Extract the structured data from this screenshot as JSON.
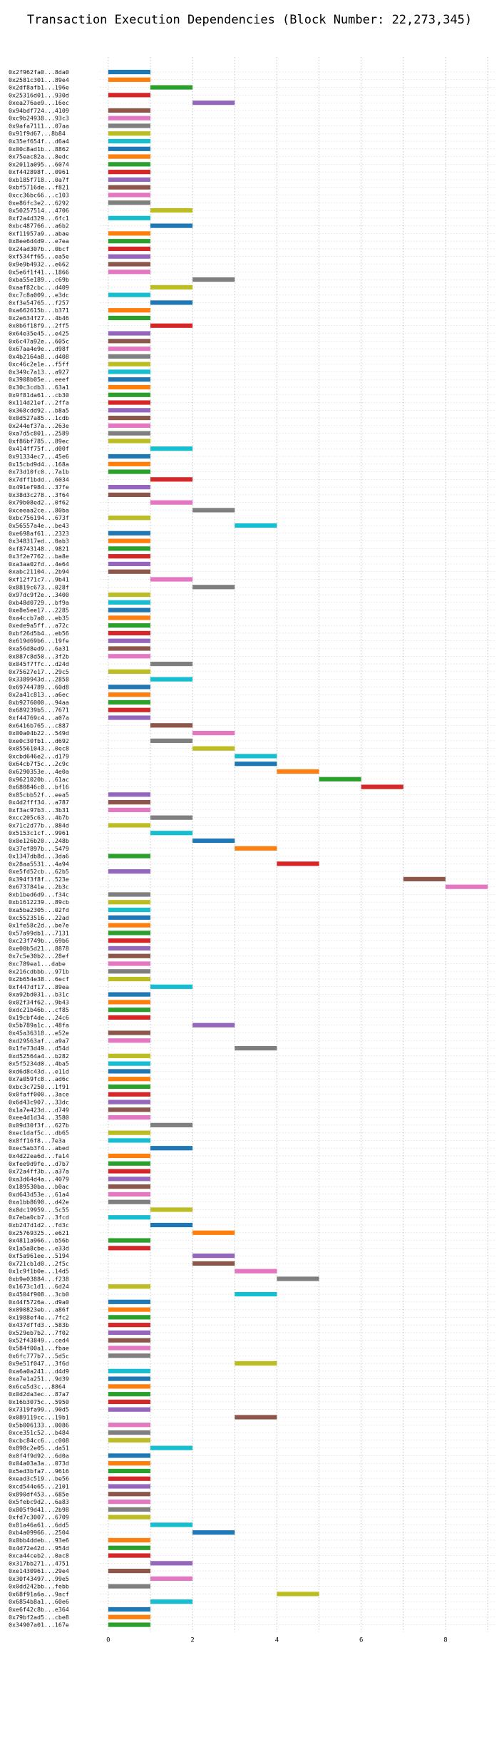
{
  "chart_data": {
    "type": "bar",
    "orientation": "horizontal",
    "title": "Transaction Execution Dependencies (Block Number: 22,273,345)",
    "xlabel": "",
    "ylabel": "",
    "xlim": [
      -0.2,
      9.2
    ],
    "xticks": [
      0,
      2,
      4,
      6,
      8
    ],
    "grid": true,
    "colors": [
      "#1f77b4",
      "#ff7f0e",
      "#2ca02c",
      "#d62728",
      "#9467bd",
      "#8c564b",
      "#e377c2",
      "#7f7f7f",
      "#bcbd22",
      "#17becf"
    ],
    "transactions": [
      {
        "label": "0x2f962fa0...8da0",
        "start": 0,
        "end": 1
      },
      {
        "label": "0x2581c301...89e4",
        "start": 0,
        "end": 1
      },
      {
        "label": "0x2df8afb1...196e",
        "start": 1,
        "end": 2
      },
      {
        "label": "0x25316d01...930d",
        "start": 0,
        "end": 1
      },
      {
        "label": "0xea276ae9...16ec",
        "start": 2,
        "end": 3
      },
      {
        "label": "0x94bdf724...4109",
        "start": 0,
        "end": 1
      },
      {
        "label": "0xc9b24938...93c3",
        "start": 0,
        "end": 1
      },
      {
        "label": "0x9afa7111...07aa",
        "start": 0,
        "end": 1
      },
      {
        "label": "0x91f9d67...8b84",
        "start": 0,
        "end": 1
      },
      {
        "label": "0x35ef654f...d6a4",
        "start": 0,
        "end": 1
      },
      {
        "label": "0x00c8ad1b...8862",
        "start": 0,
        "end": 1
      },
      {
        "label": "0x75eac82a...8edc",
        "start": 0,
        "end": 1
      },
      {
        "label": "0x2011a095...6074",
        "start": 0,
        "end": 1
      },
      {
        "label": "0xf442898f...0961",
        "start": 0,
        "end": 1
      },
      {
        "label": "0xb185f718...0a7f",
        "start": 0,
        "end": 1
      },
      {
        "label": "0xbf5716de...f821",
        "start": 0,
        "end": 1
      },
      {
        "label": "0xcc36bc66...c103",
        "start": 0,
        "end": 1
      },
      {
        "label": "0xe86fc3e2...6292",
        "start": 0,
        "end": 1
      },
      {
        "label": "0x50257514...4706",
        "start": 1,
        "end": 2
      },
      {
        "label": "0xf2a4d329...6fc1",
        "start": 0,
        "end": 1
      },
      {
        "label": "0xbc487766...a6b2",
        "start": 1,
        "end": 2
      },
      {
        "label": "0xf11957a9...abae",
        "start": 0,
        "end": 1
      },
      {
        "label": "0x8ee6d4d9...e7ea",
        "start": 0,
        "end": 1
      },
      {
        "label": "0x24ad307b...0bcf",
        "start": 0,
        "end": 1
      },
      {
        "label": "0xf534ff65...ea5e",
        "start": 0,
        "end": 1
      },
      {
        "label": "0x9e9b4932...e662",
        "start": 0,
        "end": 1
      },
      {
        "label": "0x5e6f1f41...1866",
        "start": 0,
        "end": 1
      },
      {
        "label": "0xba55e189...c69b",
        "start": 2,
        "end": 3
      },
      {
        "label": "0xaaf82cbc...d409",
        "start": 1,
        "end": 2
      },
      {
        "label": "0xc7c8a009...e3dc",
        "start": 0,
        "end": 1
      },
      {
        "label": "0xf3e54765...f257",
        "start": 1,
        "end": 2
      },
      {
        "label": "0xa662615b...b371",
        "start": 0,
        "end": 1
      },
      {
        "label": "0x2e634f27...4b46",
        "start": 0,
        "end": 1
      },
      {
        "label": "0x0b6f18f9...2ff5",
        "start": 1,
        "end": 2
      },
      {
        "label": "0x64e35e45...e425",
        "start": 0,
        "end": 1
      },
      {
        "label": "0x6c47a92e...605c",
        "start": 0,
        "end": 1
      },
      {
        "label": "0x67aa4e9e...d98f",
        "start": 0,
        "end": 1
      },
      {
        "label": "0x4b2164a8...d408",
        "start": 0,
        "end": 1
      },
      {
        "label": "0xc46c2e1e...f5ff",
        "start": 0,
        "end": 1
      },
      {
        "label": "0x349c7a13...a927",
        "start": 0,
        "end": 1
      },
      {
        "label": "0x3908b05e...eeef",
        "start": 0,
        "end": 1
      },
      {
        "label": "0x30c3cdb3...63a1",
        "start": 0,
        "end": 1
      },
      {
        "label": "0x9f81da61...cb30",
        "start": 0,
        "end": 1
      },
      {
        "label": "0x114d21ef...2ffa",
        "start": 0,
        "end": 1
      },
      {
        "label": "0x368cdd92...b8a5",
        "start": 0,
        "end": 1
      },
      {
        "label": "0x0d527a85...1cdb",
        "start": 0,
        "end": 1
      },
      {
        "label": "0x244ef37a...263e",
        "start": 0,
        "end": 1
      },
      {
        "label": "0xa7d5c801...2589",
        "start": 0,
        "end": 1
      },
      {
        "label": "0xf86bf785...89ec",
        "start": 0,
        "end": 1
      },
      {
        "label": "0x414ff75f...d00f",
        "start": 1,
        "end": 2
      },
      {
        "label": "0x91334ec7...45e6",
        "start": 0,
        "end": 1
      },
      {
        "label": "0x15cbd9d4...168a",
        "start": 0,
        "end": 1
      },
      {
        "label": "0x73d10fc0...7a1b",
        "start": 0,
        "end": 1
      },
      {
        "label": "0x7dff1bdd...6034",
        "start": 1,
        "end": 2
      },
      {
        "label": "0x491ef984...37fe",
        "start": 0,
        "end": 1
      },
      {
        "label": "0x38d3c278...3f64",
        "start": 0,
        "end": 1
      },
      {
        "label": "0x79b08ed2...0f62",
        "start": 1,
        "end": 2
      },
      {
        "label": "0xceeaa2ce...80ba",
        "start": 2,
        "end": 3
      },
      {
        "label": "0xbc756194...673f",
        "start": 0,
        "end": 1
      },
      {
        "label": "0x56557a4e...be43",
        "start": 3,
        "end": 4
      },
      {
        "label": "0xe698af61...2323",
        "start": 0,
        "end": 1
      },
      {
        "label": "0x348317ed...0ab3",
        "start": 0,
        "end": 1
      },
      {
        "label": "0xf8743148...9821",
        "start": 0,
        "end": 1
      },
      {
        "label": "0x3f2e7762...ba8e",
        "start": 0,
        "end": 1
      },
      {
        "label": "0xa3aa02fd...4e64",
        "start": 0,
        "end": 1
      },
      {
        "label": "0xabc21104...2b94",
        "start": 0,
        "end": 1
      },
      {
        "label": "0xf12f71c7...9b41",
        "start": 1,
        "end": 2
      },
      {
        "label": "0x8819c673...028f",
        "start": 2,
        "end": 3
      },
      {
        "label": "0x97dc9f2e...3400",
        "start": 0,
        "end": 1
      },
      {
        "label": "0xb48d0729...bf9a",
        "start": 0,
        "end": 1
      },
      {
        "label": "0xe8e5ee17...2285",
        "start": 0,
        "end": 1
      },
      {
        "label": "0xa4ccb7a0...eb35",
        "start": 0,
        "end": 1
      },
      {
        "label": "0xede9a5ff...a72c",
        "start": 0,
        "end": 1
      },
      {
        "label": "0xbf26d5b4...eb56",
        "start": 0,
        "end": 1
      },
      {
        "label": "0x619d69b6...19fe",
        "start": 0,
        "end": 1
      },
      {
        "label": "0xa56d8ed9...6a31",
        "start": 0,
        "end": 1
      },
      {
        "label": "0x887c8d50...3f2b",
        "start": 0,
        "end": 1
      },
      {
        "label": "0x045f7ffc...d24d",
        "start": 1,
        "end": 2
      },
      {
        "label": "0x75627e17...29c5",
        "start": 0,
        "end": 1
      },
      {
        "label": "0x3389943d...2858",
        "start": 1,
        "end": 2
      },
      {
        "label": "0x69744789...60d8",
        "start": 0,
        "end": 1
      },
      {
        "label": "0x2a41c813...a6ec",
        "start": 0,
        "end": 1
      },
      {
        "label": "0xb9276000...94aa",
        "start": 0,
        "end": 1
      },
      {
        "label": "0x689239b5...7671",
        "start": 0,
        "end": 1
      },
      {
        "label": "0xf44769c4...a07a",
        "start": 0,
        "end": 1
      },
      {
        "label": "0x6416b765...c887",
        "start": 1,
        "end": 2
      },
      {
        "label": "0x00a04b22...549d",
        "start": 2,
        "end": 3
      },
      {
        "label": "0xe0c30fb1...d692",
        "start": 1,
        "end": 2
      },
      {
        "label": "0x05561043...0ec8",
        "start": 2,
        "end": 3
      },
      {
        "label": "0xcbd646e2...d179",
        "start": 3,
        "end": 4
      },
      {
        "label": "0x64cb7f5c...2c9c",
        "start": 3,
        "end": 4
      },
      {
        "label": "0x6290353e...4e0a",
        "start": 4,
        "end": 5
      },
      {
        "label": "0x9621020b...61ac",
        "start": 5,
        "end": 6
      },
      {
        "label": "0x680846c0...bf16",
        "start": 6,
        "end": 7
      },
      {
        "label": "0x85cbb52f...eea5",
        "start": 0,
        "end": 1
      },
      {
        "label": "0x4d2fff34...a787",
        "start": 0,
        "end": 1
      },
      {
        "label": "0xf3ac97b3...3b31",
        "start": 0,
        "end": 1
      },
      {
        "label": "0xcc205c63...4b7b",
        "start": 1,
        "end": 2
      },
      {
        "label": "0x71c2d77b...884d",
        "start": 0,
        "end": 1
      },
      {
        "label": "0x5153c1cf...9961",
        "start": 1,
        "end": 2
      },
      {
        "label": "0x0e126b20...248b",
        "start": 2,
        "end": 3
      },
      {
        "label": "0x37ef897b...5479",
        "start": 3,
        "end": 4
      },
      {
        "label": "0x1347db8d...3da6",
        "start": 0,
        "end": 1
      },
      {
        "label": "0x28aa5531...4a94",
        "start": 4,
        "end": 5
      },
      {
        "label": "0xe5fd52cb...62b5",
        "start": 0,
        "end": 1
      },
      {
        "label": "0x394f3f8f...523e",
        "start": 7,
        "end": 8
      },
      {
        "label": "0x6737841e...2b3c",
        "start": 8,
        "end": 9
      },
      {
        "label": "0xb1bed6d9...f34c",
        "start": 0,
        "end": 1
      },
      {
        "label": "0xb1612239...89cb",
        "start": 0,
        "end": 1
      },
      {
        "label": "0xa5ba2305...02fd",
        "start": 0,
        "end": 1
      },
      {
        "label": "0xc5523516...22ad",
        "start": 0,
        "end": 1
      },
      {
        "label": "0x1fe58c2d...be7e",
        "start": 0,
        "end": 1
      },
      {
        "label": "0x57a99db1...7131",
        "start": 0,
        "end": 1
      },
      {
        "label": "0xc23f749b...69b6",
        "start": 0,
        "end": 1
      },
      {
        "label": "0xe00b5d21...8878",
        "start": 0,
        "end": 1
      },
      {
        "label": "0x7c5e30b2...28ef",
        "start": 0,
        "end": 1
      },
      {
        "label": "0xc789ea1...dabe",
        "start": 0,
        "end": 1
      },
      {
        "label": "0x216cdbbb...971b",
        "start": 0,
        "end": 1
      },
      {
        "label": "0x2b654e38...6ecf",
        "start": 0,
        "end": 1
      },
      {
        "label": "0xf447df17...89ea",
        "start": 1,
        "end": 2
      },
      {
        "label": "0xa92bd031...b31c",
        "start": 0,
        "end": 1
      },
      {
        "label": "0x02f34f62...9b43",
        "start": 0,
        "end": 1
      },
      {
        "label": "0xdc21b46b...cf85",
        "start": 0,
        "end": 1
      },
      {
        "label": "0x19cbf4de...24c6",
        "start": 0,
        "end": 1
      },
      {
        "label": "0x5b789a1c...48fa",
        "start": 2,
        "end": 3
      },
      {
        "label": "0x45a36318...e52e",
        "start": 0,
        "end": 1
      },
      {
        "label": "0xd29563af...a9a7",
        "start": 0,
        "end": 1
      },
      {
        "label": "0x1fe73d49...d54d",
        "start": 3,
        "end": 4
      },
      {
        "label": "0xd52564a4...b282",
        "start": 0,
        "end": 1
      },
      {
        "label": "0x5f5234d0...4ba5",
        "start": 0,
        "end": 1
      },
      {
        "label": "0xd6d8c43d...e11d",
        "start": 0,
        "end": 1
      },
      {
        "label": "0x7a059fc8...ad6c",
        "start": 0,
        "end": 1
      },
      {
        "label": "0xbc3c7250...1f91",
        "start": 0,
        "end": 1
      },
      {
        "label": "0x0faff000...3ace",
        "start": 0,
        "end": 1
      },
      {
        "label": "0x6d43c907...33dc",
        "start": 0,
        "end": 1
      },
      {
        "label": "0x1a7e423d...d749",
        "start": 0,
        "end": 1
      },
      {
        "label": "0xee4d1d34...3580",
        "start": 0,
        "end": 1
      },
      {
        "label": "0x09d30f3f...627b",
        "start": 1,
        "end": 2
      },
      {
        "label": "0xec1daf5c...db65",
        "start": 0,
        "end": 1
      },
      {
        "label": "0x8ff16f8...7e3a",
        "start": 0,
        "end": 1
      },
      {
        "label": "0xec5ab3f4...abed",
        "start": 1,
        "end": 2
      },
      {
        "label": "0x4d22ea6d...fa14",
        "start": 0,
        "end": 1
      },
      {
        "label": "0xfee9d9fe...d7b7",
        "start": 0,
        "end": 1
      },
      {
        "label": "0x72a4ff3b...a37a",
        "start": 0,
        "end": 1
      },
      {
        "label": "0xa3d64d4a...4079",
        "start": 0,
        "end": 1
      },
      {
        "label": "0x189530ba...b0ac",
        "start": 0,
        "end": 1
      },
      {
        "label": "0xd643d53e...61a4",
        "start": 0,
        "end": 1
      },
      {
        "label": "0xa1bb8690...d42e",
        "start": 0,
        "end": 1
      },
      {
        "label": "0x8dc19959...5c55",
        "start": 1,
        "end": 2
      },
      {
        "label": "0x7eba0cb7...3fcd",
        "start": 0,
        "end": 1
      },
      {
        "label": "0xb247d1d2...fd3c",
        "start": 1,
        "end": 2
      },
      {
        "label": "0x25769325...e621",
        "start": 2,
        "end": 3
      },
      {
        "label": "0x4811a966...b56b",
        "start": 0,
        "end": 1
      },
      {
        "label": "0x1a5a8cbe...e33d",
        "start": 0,
        "end": 1
      },
      {
        "label": "0xf5a961ee...5194",
        "start": 2,
        "end": 3
      },
      {
        "label": "0x721cb1d0...2f5c",
        "start": 2,
        "end": 3
      },
      {
        "label": "0x1c9f1b0e...14d5",
        "start": 3,
        "end": 4
      },
      {
        "label": "0xb9e03884...f238",
        "start": 4,
        "end": 5
      },
      {
        "label": "0x1673c1d1...6d24",
        "start": 0,
        "end": 1
      },
      {
        "label": "0x4504f908...3cb0",
        "start": 3,
        "end": 4
      },
      {
        "label": "0x44f5726a...d9a0",
        "start": 0,
        "end": 1
      },
      {
        "label": "0x090823eb...a86f",
        "start": 0,
        "end": 1
      },
      {
        "label": "0x1988ef4e...7fc2",
        "start": 0,
        "end": 1
      },
      {
        "label": "0x437dffd3...583b",
        "start": 0,
        "end": 1
      },
      {
        "label": "0x529eb7b2...7f02",
        "start": 0,
        "end": 1
      },
      {
        "label": "0x52f43849...ced4",
        "start": 0,
        "end": 1
      },
      {
        "label": "0x584f00a1...fbae",
        "start": 0,
        "end": 1
      },
      {
        "label": "0x6fc777b7...5d5c",
        "start": 0,
        "end": 1
      },
      {
        "label": "0x9e51f047...3f6d",
        "start": 3,
        "end": 4
      },
      {
        "label": "0xa6a0a241...d4d9",
        "start": 0,
        "end": 1
      },
      {
        "label": "0xa7e1a251...9d39",
        "start": 0,
        "end": 1
      },
      {
        "label": "0x6ce5d3c...8864",
        "start": 0,
        "end": 1
      },
      {
        "label": "0x0d2da3ec...87a7",
        "start": 0,
        "end": 1
      },
      {
        "label": "0x16b3075c...5950",
        "start": 0,
        "end": 1
      },
      {
        "label": "0x7319fa99...90d5",
        "start": 0,
        "end": 1
      },
      {
        "label": "0x089119cc...19b1",
        "start": 3,
        "end": 4
      },
      {
        "label": "0x5b006133...0086",
        "start": 0,
        "end": 1
      },
      {
        "label": "0xce351c52...b484",
        "start": 0,
        "end": 1
      },
      {
        "label": "0xcbc84cc6...c008",
        "start": 0,
        "end": 1
      },
      {
        "label": "0x898c2e05...da51",
        "start": 1,
        "end": 2
      },
      {
        "label": "0x0f4f9d92...6d0a",
        "start": 0,
        "end": 1
      },
      {
        "label": "0x04a03a3a...073d",
        "start": 0,
        "end": 1
      },
      {
        "label": "0x5ed3bfa7...9616",
        "start": 0,
        "end": 1
      },
      {
        "label": "0xead3c519...be56",
        "start": 0,
        "end": 1
      },
      {
        "label": "0xcd544e65...2101",
        "start": 0,
        "end": 1
      },
      {
        "label": "0x890df453...685e",
        "start": 0,
        "end": 1
      },
      {
        "label": "0x5febc9d2...6a83",
        "start": 0,
        "end": 1
      },
      {
        "label": "0x805f9d41...2b98",
        "start": 0,
        "end": 1
      },
      {
        "label": "0xfd7c3007...6709",
        "start": 0,
        "end": 1
      },
      {
        "label": "0x81a46a61...6dd5",
        "start": 1,
        "end": 2
      },
      {
        "label": "0xb4a09966...2504",
        "start": 2,
        "end": 3
      },
      {
        "label": "0x0bb4ddeb...93e6",
        "start": 0,
        "end": 1
      },
      {
        "label": "0x4d72e42d...954d",
        "start": 0,
        "end": 1
      },
      {
        "label": "0xca44ceb2...0ac8",
        "start": 0,
        "end": 1
      },
      {
        "label": "0x317bb271...4751",
        "start": 1,
        "end": 2
      },
      {
        "label": "0xe1430961...29e4",
        "start": 0,
        "end": 1
      },
      {
        "label": "0x30f43497...99e5",
        "start": 1,
        "end": 2
      },
      {
        "label": "0x0dd242bb...febb",
        "start": 0,
        "end": 1
      },
      {
        "label": "0x68f91a6a...9acf",
        "start": 4,
        "end": 5
      },
      {
        "label": "0x6854b8a1...60e6",
        "start": 1,
        "end": 2
      },
      {
        "label": "0xe6f42c8b...e364",
        "start": 0,
        "end": 1
      },
      {
        "label": "0x79bf2ad5...cbe8",
        "start": 0,
        "end": 1
      },
      {
        "label": "0x34907a01...167e",
        "start": 0,
        "end": 1
      }
    ]
  }
}
